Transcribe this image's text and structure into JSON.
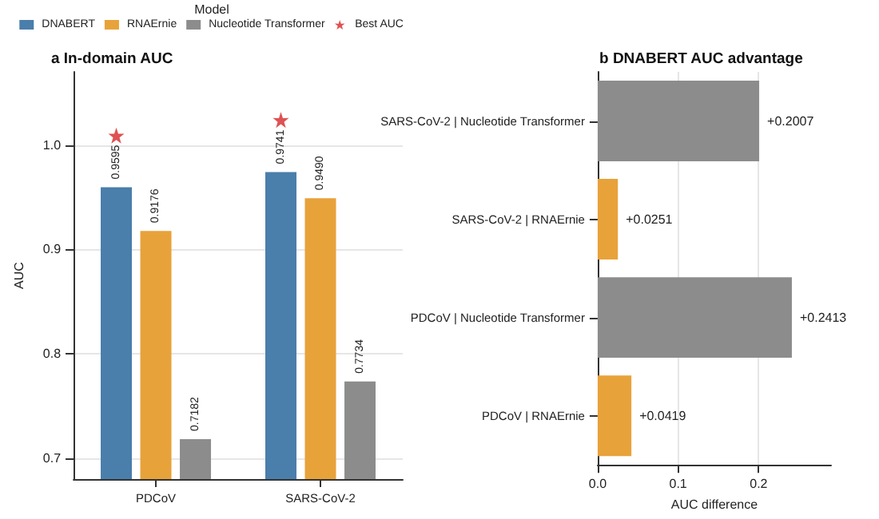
{
  "chart_data": [
    {
      "type": "bar",
      "title": "a In-domain AUC",
      "ylabel": "AUC",
      "legend_title": "Model",
      "legend": "top",
      "grid": "y",
      "categories": [
        "PDCoV",
        "SARS-CoV-2"
      ],
      "series": [
        {
          "name": "DNABERT",
          "color": "#4a7eab",
          "values": [
            0.9595,
            0.9741
          ],
          "value_labels": [
            "0.9595",
            "0.9741"
          ]
        },
        {
          "name": "RNAErnie",
          "color": "#e8a23a",
          "values": [
            0.9176,
            0.949
          ],
          "value_labels": [
            "0.9176",
            "0.9490"
          ]
        },
        {
          "name": "Nucleotide Transformer",
          "color": "#8c8c8c",
          "values": [
            0.7182,
            0.7734
          ],
          "value_labels": [
            "0.7182",
            "0.7734"
          ]
        },
        {
          "name": "Best AUC",
          "type": "scatter",
          "marker": "star",
          "color": "#d62728",
          "x": [
            "PDCoV",
            "SARS-CoV-2"
          ],
          "values": [
            1.009,
            1.024
          ]
        }
      ],
      "ylim": [
        0.68,
        1.07
      ],
      "yticks": [
        0.7,
        0.8,
        0.9,
        {
          "value": 1,
          "label": "1.0"
        }
      ]
    },
    {
      "type": "bar",
      "orientation": "horizontal",
      "title": "b DNABERT AUC advantage",
      "xlabel": "AUC difference",
      "grid": "x",
      "categories": [
        "SARS-CoV-2 | Nucleotide Transformer",
        "SARS-CoV-2 | RNAErnie",
        "PDCoV | Nucleotide Transformer",
        "PDCoV | RNAErnie"
      ],
      "values": [
        0.2007,
        0.0251,
        0.2413,
        0.0419
      ],
      "colors": [
        "#8c8c8c",
        "#e8a23a",
        "#8c8c8c",
        "#e8a23a"
      ],
      "value_labels": [
        "+0.2007",
        "+0.0251",
        "+0.2413",
        "+0.0419"
      ],
      "xlim": [
        0,
        0.29
      ],
      "xticks": [
        {
          "value": 0,
          "label": "0.0"
        },
        0.1,
        0.2
      ]
    }
  ]
}
